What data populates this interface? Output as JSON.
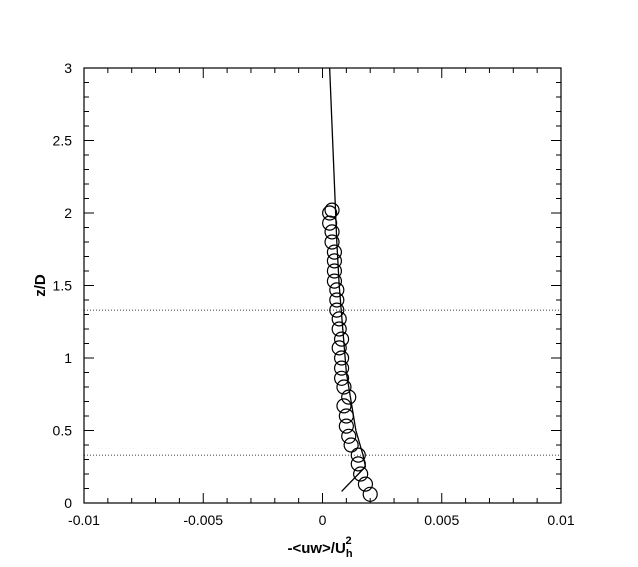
{
  "chart_data": {
    "type": "scatter",
    "title": "",
    "xlabel": "-<uw>/U",
    "xlabel_sub": "h",
    "xlabel_sup": "2",
    "ylabel": "z/D",
    "xlim": [
      -0.01,
      0.01
    ],
    "ylim": [
      0,
      3
    ],
    "xticks": [
      -0.01,
      -0.005,
      0,
      0.005,
      0.01
    ],
    "xtick_labels": [
      "-0.01",
      "-0.005",
      "0",
      "0.005",
      "0.01"
    ],
    "yticks": [
      0,
      0.5,
      1,
      1.5,
      2,
      2.5,
      3
    ],
    "ytick_labels": [
      "0",
      "0.5",
      "1",
      "1.5",
      "2",
      "2.5",
      "3"
    ],
    "grid": false,
    "reference_lines_z": [
      0.33,
      1.33
    ],
    "series": [
      {
        "style": "line",
        "color": "#000000",
        "x": [
          0.0008,
          0.0018,
          0.0017,
          0.0014,
          0.0012,
          0.001,
          0.0009,
          0.0008,
          0.0007,
          0.0006,
          0.0005,
          0.0004,
          0.0003
        ],
        "y": [
          0.08,
          0.25,
          0.33,
          0.5,
          0.7,
          0.9,
          1.1,
          1.3,
          1.5,
          1.8,
          2.2,
          2.6,
          3.0
        ]
      },
      {
        "style": "markers",
        "marker": "open-circle",
        "color": "#000000",
        "x": [
          0.002,
          0.0018,
          0.0016,
          0.0015,
          0.0015,
          0.0012,
          0.0011,
          0.001,
          0.001,
          0.0011,
          0.0009,
          0.0009,
          0.0008,
          0.0008,
          0.0008,
          0.0007,
          0.0008,
          0.0007,
          0.0007,
          0.0006,
          0.0006,
          0.0006,
          0.0005,
          0.0005,
          0.0005,
          0.0005,
          0.0004,
          0.0004,
          0.0003,
          0.0003,
          0.0004
        ],
        "y": [
          0.06,
          0.13,
          0.2,
          0.27,
          0.33,
          0.4,
          0.46,
          0.53,
          0.6,
          0.73,
          0.67,
          0.8,
          0.86,
          0.93,
          1.0,
          1.07,
          1.13,
          1.2,
          1.27,
          1.33,
          1.4,
          1.47,
          1.53,
          1.6,
          1.67,
          1.73,
          1.8,
          1.87,
          1.93,
          2.0,
          2.02
        ]
      }
    ]
  }
}
